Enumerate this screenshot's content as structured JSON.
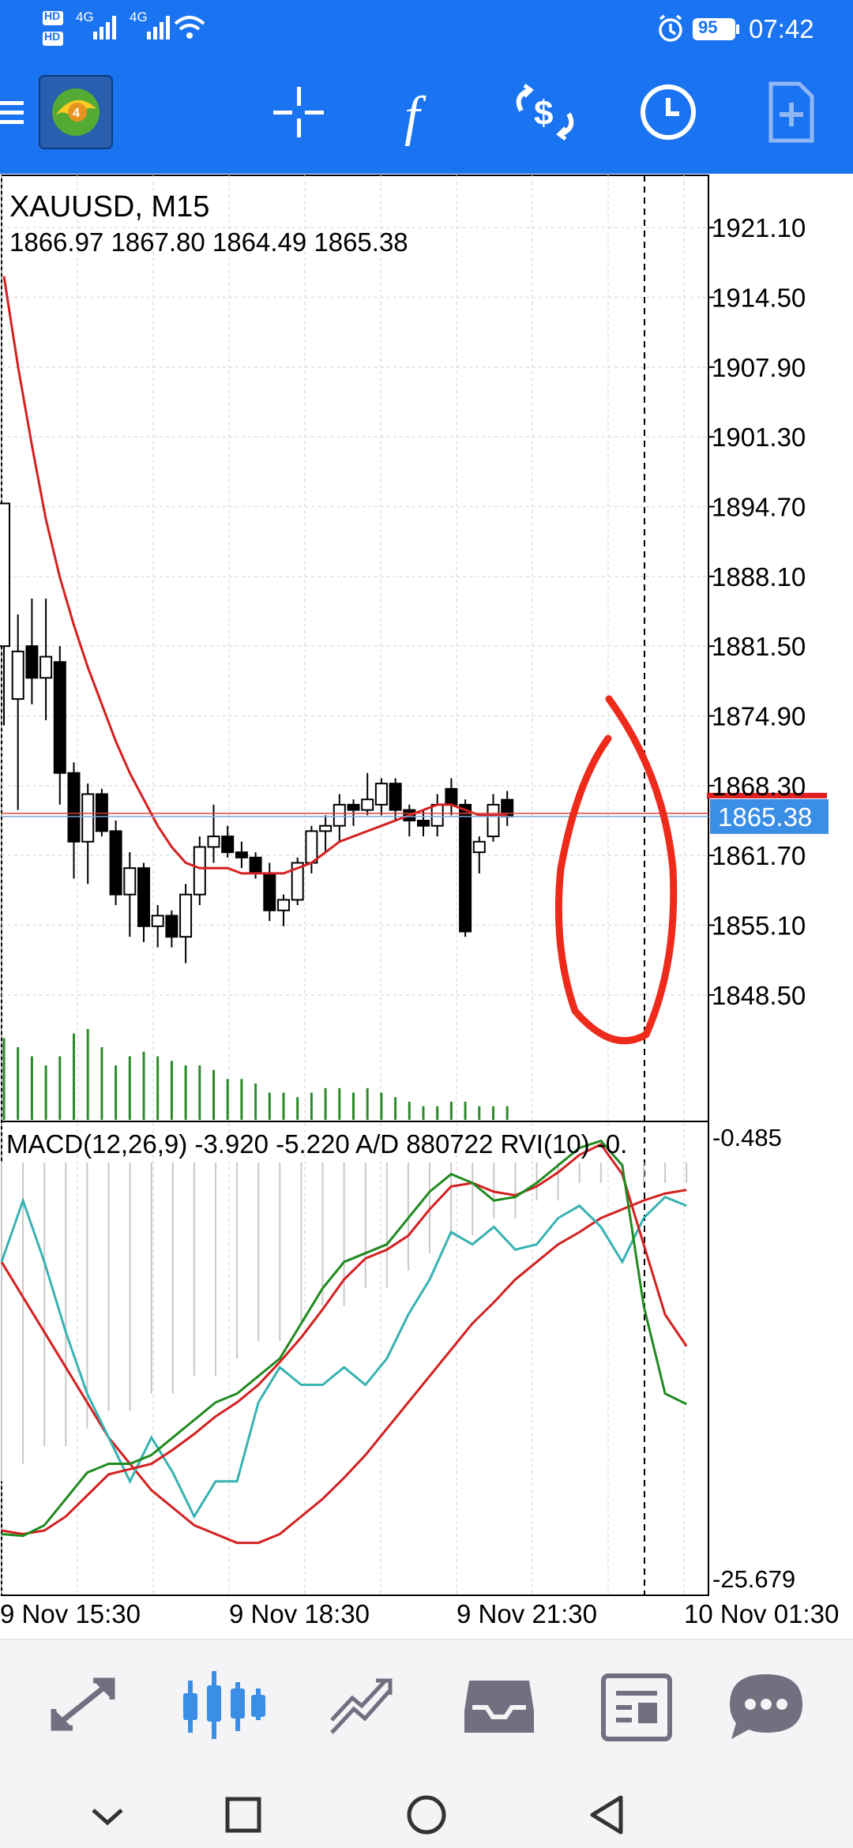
{
  "status": {
    "time": "07:42",
    "battery": "95",
    "network_1": "4G",
    "network_2": "4G",
    "hd_1": "HD",
    "hd_2": "HD"
  },
  "toolbar": {
    "icons": [
      "menu-icon",
      "metatrader-logo-icon",
      "crosshair-icon",
      "indicators-icon",
      "trade-icon",
      "timeframe-icon",
      "new-order-icon"
    ],
    "function_label": "f"
  },
  "chart": {
    "symbol": "XAUUSD, M15",
    "ohlc": "1866.97 1867.80 1864.49 1865.38",
    "current_price": "1865.38",
    "price_labels": [
      "1921.10",
      "1914.50",
      "1907.90",
      "1901.30",
      "1894.70",
      "1888.10",
      "1881.50",
      "1874.90",
      "1868.30",
      "1861.70",
      "1855.10",
      "1848.50"
    ],
    "indicator_line": "MACD(12,26,9) -3.920 -5.220 A/D 880722 RVI(10) -0.",
    "indicator_max": "-0.485",
    "indicator_min": "-25.679",
    "time_labels": [
      "9 Nov 15:30",
      "9 Nov 18:30",
      "9 Nov 21:30",
      "10 Nov 01:30"
    ],
    "colors": {
      "bull_candle": "#ffffff",
      "bear_candle": "#000000",
      "ma_line": "#d42020",
      "volume": "#2a8a2a",
      "annotation": "#ee2a1a",
      "price_tag": "#3a8ee6"
    }
  },
  "chart_data": {
    "type": "candlestick",
    "symbol": "XAUUSD",
    "timeframe": "M15",
    "ylim": [
      1845.2,
      1924.4
    ],
    "candles": [
      {
        "o": 1881.5,
        "h": 1895.0,
        "l": 1874.0,
        "c": 1895.0
      },
      {
        "o": 1876.5,
        "h": 1884.5,
        "l": 1866.0,
        "c": 1881.0
      },
      {
        "o": 1881.5,
        "h": 1886.0,
        "l": 1876.0,
        "c": 1878.5
      },
      {
        "o": 1878.5,
        "h": 1886.0,
        "l": 1874.5,
        "c": 1880.5
      },
      {
        "o": 1880.0,
        "h": 1881.5,
        "l": 1866.5,
        "c": 1869.5
      },
      {
        "o": 1869.5,
        "h": 1870.5,
        "l": 1859.5,
        "c": 1863.0
      },
      {
        "o": 1863.0,
        "h": 1868.5,
        "l": 1859.0,
        "c": 1867.5
      },
      {
        "o": 1867.5,
        "h": 1868.0,
        "l": 1863.5,
        "c": 1864.0
      },
      {
        "o": 1864.0,
        "h": 1865.0,
        "l": 1857.0,
        "c": 1858.0
      },
      {
        "o": 1858.0,
        "h": 1862.0,
        "l": 1854.0,
        "c": 1860.5
      },
      {
        "o": 1860.5,
        "h": 1861.0,
        "l": 1853.5,
        "c": 1855.0
      },
      {
        "o": 1855.0,
        "h": 1857.0,
        "l": 1853.0,
        "c": 1856.0
      },
      {
        "o": 1856.0,
        "h": 1856.5,
        "l": 1853.0,
        "c": 1854.0
      },
      {
        "o": 1854.0,
        "h": 1859.0,
        "l": 1851.5,
        "c": 1858.0
      },
      {
        "o": 1858.0,
        "h": 1863.5,
        "l": 1857.0,
        "c": 1862.5
      },
      {
        "o": 1862.5,
        "h": 1866.5,
        "l": 1861.0,
        "c": 1863.5
      },
      {
        "o": 1863.5,
        "h": 1864.5,
        "l": 1861.5,
        "c": 1862.0
      },
      {
        "o": 1862.0,
        "h": 1863.0,
        "l": 1860.5,
        "c": 1861.5
      },
      {
        "o": 1861.5,
        "h": 1862.0,
        "l": 1859.5,
        "c": 1860.0
      },
      {
        "o": 1860.0,
        "h": 1861.0,
        "l": 1855.5,
        "c": 1856.5
      },
      {
        "o": 1856.5,
        "h": 1858.0,
        "l": 1855.0,
        "c": 1857.5
      },
      {
        "o": 1857.5,
        "h": 1861.5,
        "l": 1857.0,
        "c": 1861.0
      },
      {
        "o": 1861.0,
        "h": 1864.5,
        "l": 1860.0,
        "c": 1864.0
      },
      {
        "o": 1864.0,
        "h": 1865.5,
        "l": 1862.0,
        "c": 1864.5
      },
      {
        "o": 1864.5,
        "h": 1867.5,
        "l": 1863.0,
        "c": 1866.5
      },
      {
        "o": 1866.5,
        "h": 1867.0,
        "l": 1864.5,
        "c": 1866.0
      },
      {
        "o": 1866.0,
        "h": 1869.5,
        "l": 1865.5,
        "c": 1867.0
      },
      {
        "o": 1866.5,
        "h": 1869.0,
        "l": 1865.5,
        "c": 1868.5
      },
      {
        "o": 1868.5,
        "h": 1869.0,
        "l": 1865.0,
        "c": 1866.0
      },
      {
        "o": 1866.0,
        "h": 1866.5,
        "l": 1863.5,
        "c": 1865.0
      },
      {
        "o": 1865.0,
        "h": 1866.0,
        "l": 1863.5,
        "c": 1864.5
      },
      {
        "o": 1864.5,
        "h": 1867.5,
        "l": 1863.5,
        "c": 1866.5
      },
      {
        "o": 1868.0,
        "h": 1869.0,
        "l": 1865.5,
        "c": 1866.5
      },
      {
        "o": 1866.5,
        "h": 1867.0,
        "l": 1854.0,
        "c": 1854.5
      },
      {
        "o": 1862.0,
        "h": 1863.5,
        "l": 1860.0,
        "c": 1863.0
      },
      {
        "o": 1863.5,
        "h": 1867.5,
        "l": 1863.0,
        "c": 1866.5
      },
      {
        "o": 1866.97,
        "h": 1867.8,
        "l": 1864.49,
        "c": 1865.38
      }
    ],
    "ma": [
      1916.5,
      1908.0,
      1900.5,
      1893.5,
      1888.0,
      1883.5,
      1879.5,
      1876.0,
      1872.5,
      1869.5,
      1867.0,
      1864.5,
      1862.5,
      1861.0,
      1860.5,
      1860.5,
      1860.5,
      1860.0,
      1860.0,
      1860.0,
      1860.0,
      1860.5,
      1861.0,
      1862.0,
      1863.0,
      1863.5,
      1864.0,
      1864.5,
      1865.0,
      1865.5,
      1866.0,
      1866.5,
      1866.5,
      1866.0,
      1865.5,
      1865.5,
      1865.5
    ],
    "volume": [
      0.9,
      0.8,
      0.7,
      0.6,
      0.7,
      0.95,
      1.0,
      0.8,
      0.6,
      0.7,
      0.75,
      0.7,
      0.65,
      0.6,
      0.6,
      0.55,
      0.45,
      0.45,
      0.4,
      0.3,
      0.3,
      0.25,
      0.3,
      0.35,
      0.35,
      0.3,
      0.35,
      0.3,
      0.25,
      0.2,
      0.15,
      0.15,
      0.2,
      0.2,
      0.15,
      0.15,
      0.15
    ],
    "indicator": {
      "ylim": [
        -25.679,
        -0.485
      ],
      "green": [
        -23.0,
        -23.1,
        -22.5,
        -21.0,
        -19.5,
        -19.0,
        -19.0,
        -18.5,
        -17.5,
        -16.5,
        -15.5,
        -15.0,
        -14.0,
        -13.0,
        -11.0,
        -9.0,
        -7.5,
        -7.0,
        -6.5,
        -5.0,
        -3.5,
        -2.5,
        -3.0,
        -4.0,
        -3.8,
        -3.0,
        -2.0,
        -1.0,
        -0.6,
        -2.0,
        -10.0,
        -15.0,
        -15.6
      ],
      "red": [
        -22.8,
        -23.0,
        -22.8,
        -22.0,
        -20.8,
        -19.6,
        -19.3,
        -19.0,
        -18.2,
        -17.3,
        -16.3,
        -15.5,
        -14.5,
        -13.2,
        -11.8,
        -10.2,
        -8.5,
        -7.3,
        -6.8,
        -6.0,
        -4.5,
        -3.2,
        -3.0,
        -3.5,
        -3.7,
        -3.2,
        -2.4,
        -1.4,
        -0.8,
        -2.5,
        -6.5,
        -10.5,
        -12.3
      ],
      "teal": [
        -7.5,
        -4.0,
        -7.5,
        -11.5,
        -15.0,
        -17.5,
        -20.0,
        -17.5,
        -19.5,
        -22.0,
        -20.0,
        -20.0,
        -15.5,
        -13.5,
        -14.5,
        -14.5,
        -13.5,
        -14.5,
        -13.0,
        -10.5,
        -8.5,
        -5.8,
        -6.5,
        -5.5,
        -6.8,
        -6.5,
        -5.0,
        -4.3,
        -5.5,
        -7.5,
        -5.0,
        -3.8,
        -4.3
      ],
      "signal": [
        -7.5,
        -9.5,
        -11.5,
        -13.5,
        -15.5,
        -17.5,
        -19.0,
        -20.5,
        -21.5,
        -22.5,
        -23.0,
        -23.5,
        -23.5,
        -23.0,
        -22.0,
        -21.0,
        -19.8,
        -18.5,
        -17.0,
        -15.5,
        -14.0,
        -12.5,
        -11.0,
        -9.8,
        -8.5,
        -7.5,
        -6.5,
        -5.8,
        -5.0,
        -4.5,
        -4.0,
        -3.6,
        -3.4
      ],
      "histogram": [
        -20,
        -19,
        -18,
        -18,
        -17,
        -16,
        -16,
        -15,
        -15,
        -14,
        -14,
        -13,
        -12,
        -12,
        -11,
        -10,
        -10,
        -9,
        -9,
        -8,
        -7,
        -6,
        -6,
        -5,
        -5,
        -4,
        -4,
        -3,
        -3,
        -2,
        -3,
        -3,
        -3
      ]
    }
  }
}
